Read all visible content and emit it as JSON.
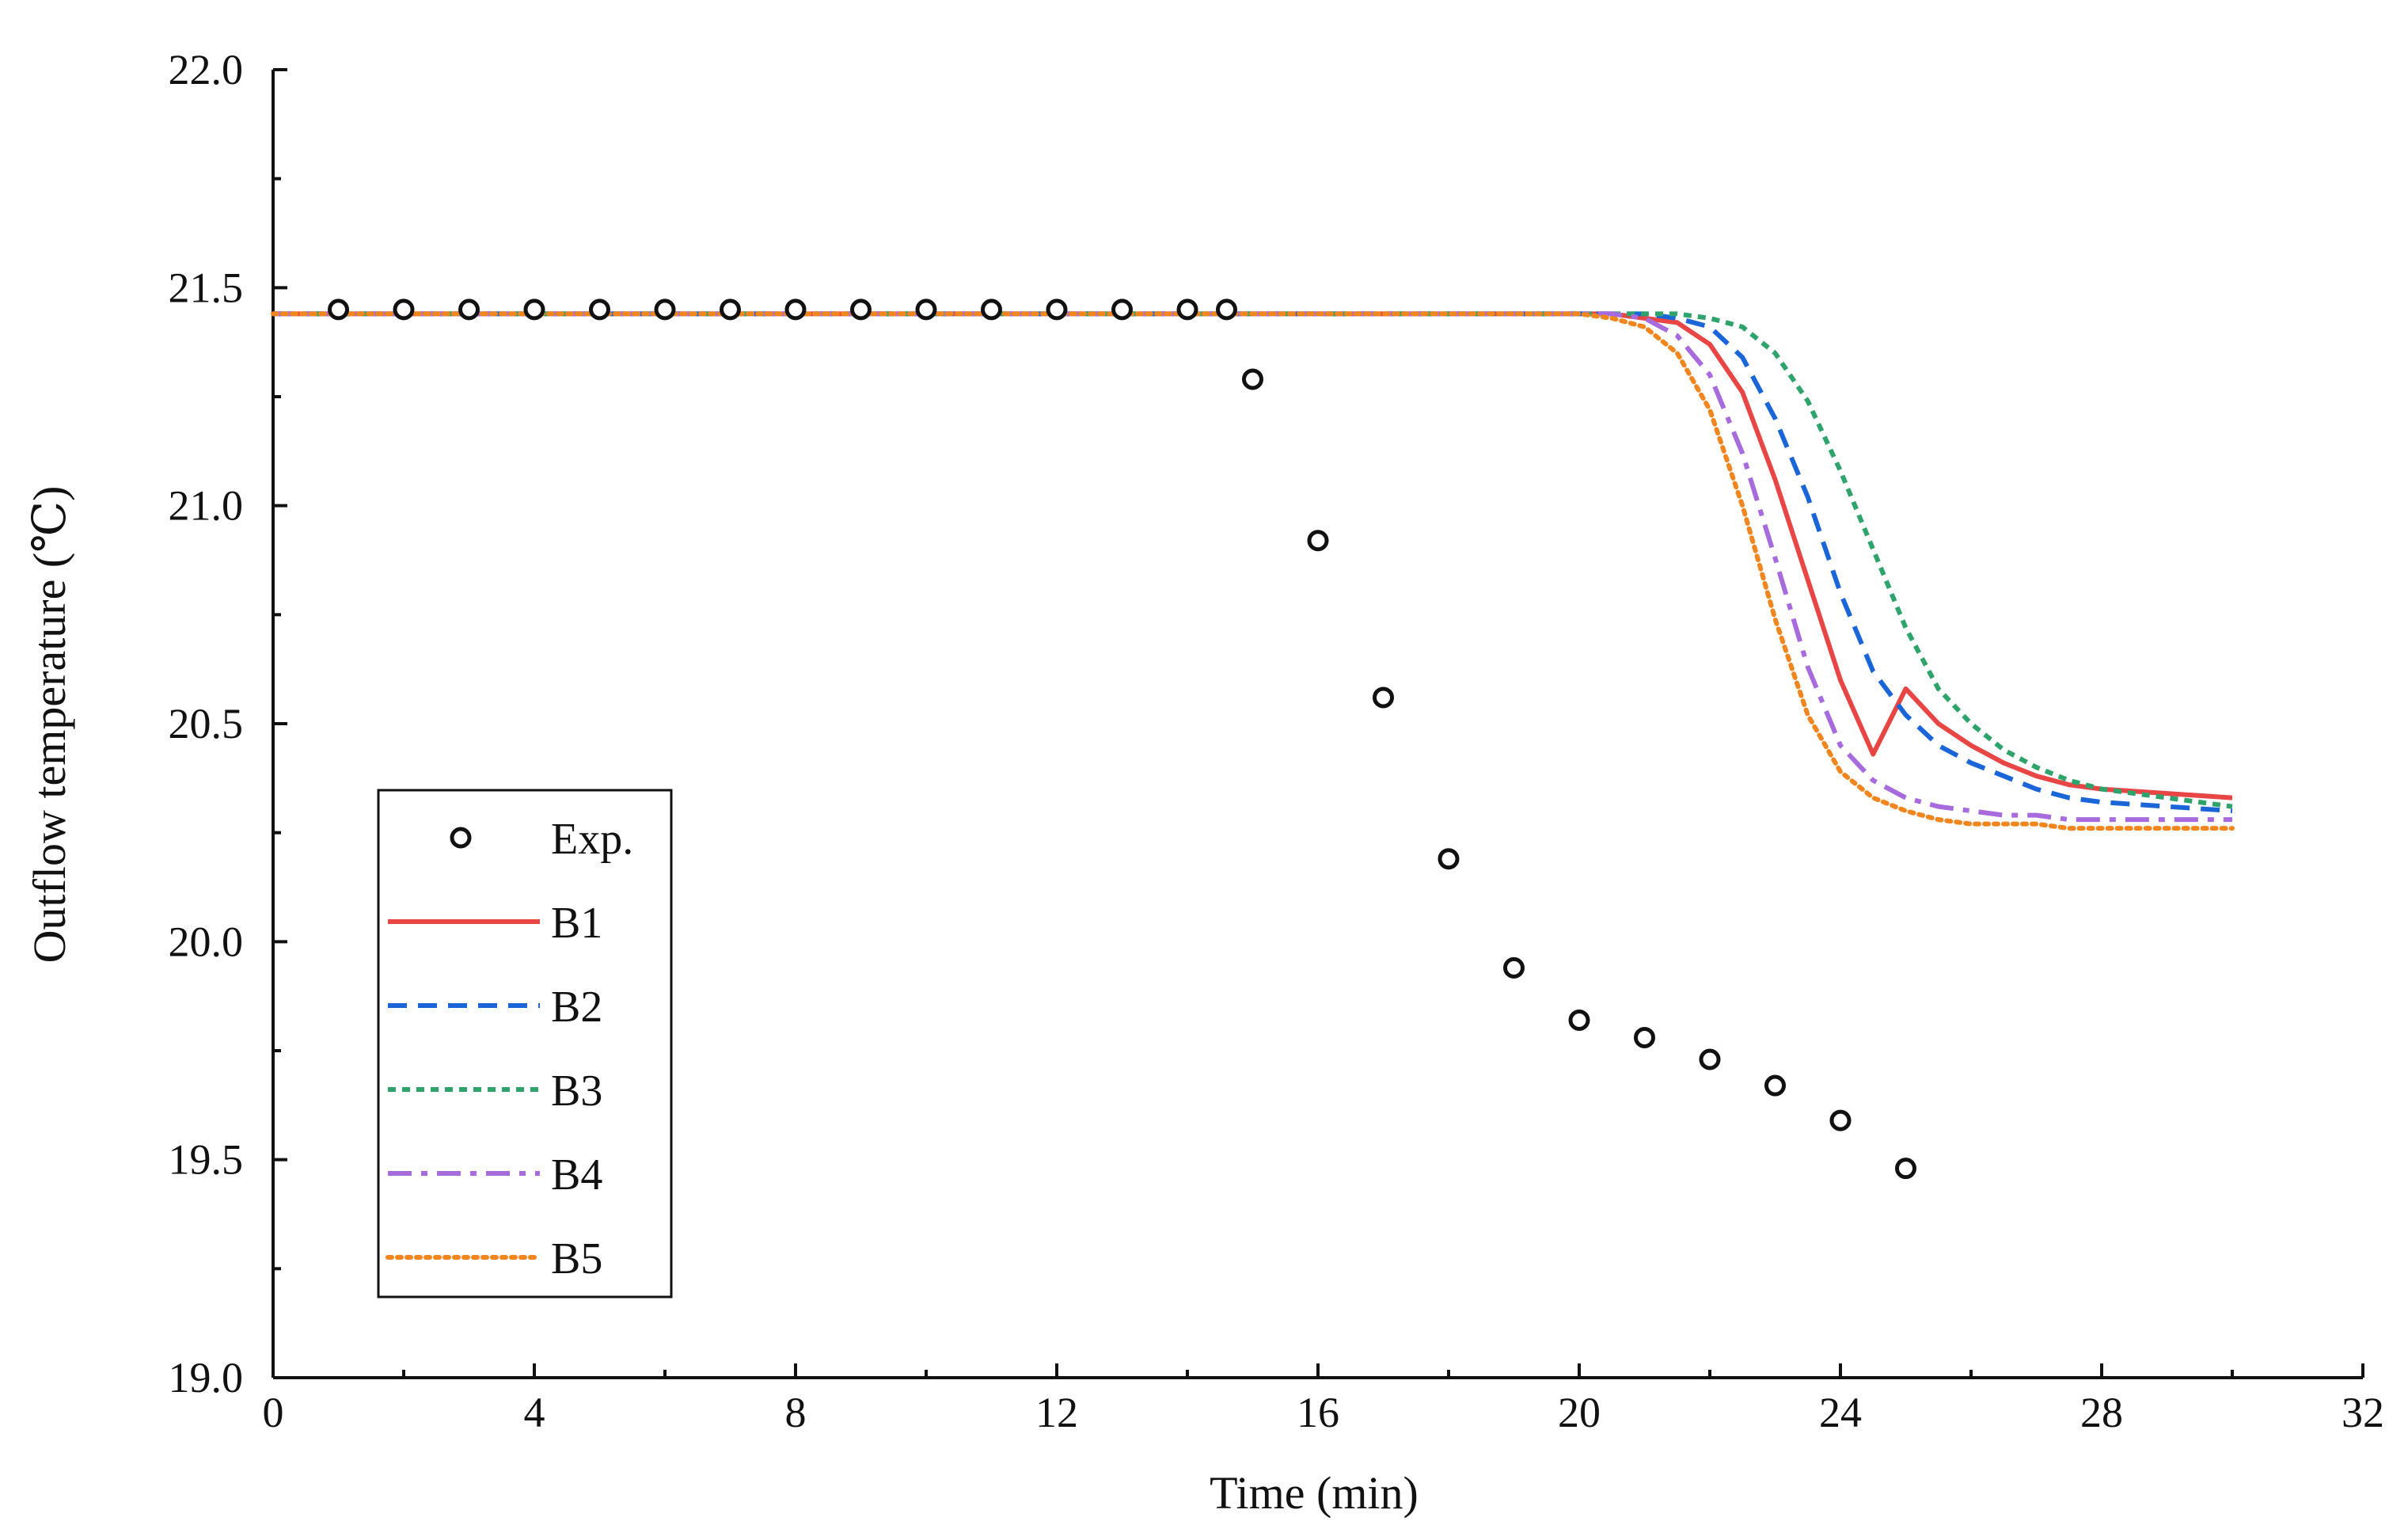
{
  "chart_data": {
    "type": "line",
    "title": "",
    "xlabel": "Time (min)",
    "ylabel": "Outflow temperature (℃)",
    "xlim": [
      0,
      32
    ],
    "ylim": [
      19.0,
      22.0
    ],
    "x_ticks": [
      "0",
      "4",
      "8",
      "12",
      "16",
      "20",
      "24",
      "28",
      "32"
    ],
    "y_ticks": [
      "19.0",
      "19.5",
      "20.0",
      "20.5",
      "21.0",
      "21.5",
      "22.0"
    ],
    "legend_position": "bottom-left",
    "experiment": {
      "name": "Exp.",
      "x": [
        1,
        2,
        3,
        4,
        5,
        6,
        7,
        8,
        9,
        10,
        11,
        12,
        13,
        14,
        14.6,
        15,
        16,
        17,
        18,
        19,
        20,
        21,
        22,
        23,
        24,
        25
      ],
      "y": [
        21.45,
        21.45,
        21.45,
        21.45,
        21.45,
        21.45,
        21.45,
        21.45,
        21.45,
        21.45,
        21.45,
        21.45,
        21.45,
        21.45,
        21.45,
        21.29,
        20.92,
        20.56,
        20.19,
        19.94,
        19.82,
        19.78,
        19.73,
        19.67,
        19.59,
        19.48
      ],
      "color": "#111111"
    },
    "series": [
      {
        "name": "B1",
        "color": "#e84545",
        "dash": "solid",
        "x": [
          0,
          20,
          20.5,
          21,
          21.5,
          22,
          22.5,
          23,
          23.5,
          24,
          24.5,
          25,
          25.5,
          26,
          26.5,
          27,
          27.5,
          28,
          29,
          30
        ],
        "y": [
          21.44,
          21.44,
          21.44,
          21.43,
          21.42,
          21.37,
          21.26,
          21.06,
          20.83,
          20.6,
          20.43,
          20.58,
          20.5,
          20.45,
          20.41,
          20.38,
          20.36,
          20.35,
          20.34,
          20.33
        ]
      },
      {
        "name": "B2",
        "color": "#1a66d9",
        "dash": "dashed",
        "x": [
          0,
          20,
          20.5,
          21,
          21.5,
          22,
          22.5,
          23,
          23.5,
          24,
          24.5,
          25,
          25.5,
          26,
          26.5,
          27,
          27.5,
          28,
          29,
          30
        ],
        "y": [
          21.44,
          21.44,
          21.44,
          21.44,
          21.43,
          21.41,
          21.34,
          21.2,
          21.02,
          20.8,
          20.62,
          20.52,
          20.45,
          20.41,
          20.38,
          20.35,
          20.33,
          20.32,
          20.31,
          20.3
        ]
      },
      {
        "name": "B3",
        "color": "#2ea36b",
        "dash": "dotted-dense",
        "x": [
          0,
          20,
          20.5,
          21,
          21.5,
          22,
          22.5,
          23,
          23.5,
          24,
          24.5,
          25,
          25.5,
          26,
          26.5,
          27,
          27.5,
          28,
          29,
          30
        ],
        "y": [
          21.44,
          21.44,
          21.44,
          21.44,
          21.44,
          21.43,
          21.41,
          21.35,
          21.24,
          21.08,
          20.9,
          20.72,
          20.58,
          20.5,
          20.44,
          20.4,
          20.37,
          20.35,
          20.33,
          20.31
        ]
      },
      {
        "name": "B4",
        "color": "#a76bde",
        "dash": "dash-dot",
        "x": [
          0,
          20,
          20.5,
          21,
          21.5,
          22,
          22.5,
          23,
          23.5,
          24,
          24.5,
          25,
          25.5,
          26,
          26.5,
          27,
          27.5,
          28,
          29,
          30
        ],
        "y": [
          21.44,
          21.44,
          21.44,
          21.43,
          21.39,
          21.3,
          21.12,
          20.88,
          20.63,
          20.45,
          20.37,
          20.33,
          20.31,
          20.3,
          20.29,
          20.29,
          20.28,
          20.28,
          20.28,
          20.28
        ]
      },
      {
        "name": "B5",
        "color": "#f2861e",
        "dash": "dotted",
        "x": [
          0,
          20,
          20.5,
          21,
          21.5,
          22,
          22.5,
          23,
          23.5,
          24,
          24.5,
          25,
          25.5,
          26,
          26.5,
          27,
          27.5,
          28,
          29,
          30
        ],
        "y": [
          21.44,
          21.44,
          21.43,
          21.41,
          21.35,
          21.22,
          21.0,
          20.74,
          20.52,
          20.39,
          20.33,
          20.3,
          20.28,
          20.27,
          20.27,
          20.27,
          20.26,
          20.26,
          20.26,
          20.26
        ]
      }
    ]
  }
}
